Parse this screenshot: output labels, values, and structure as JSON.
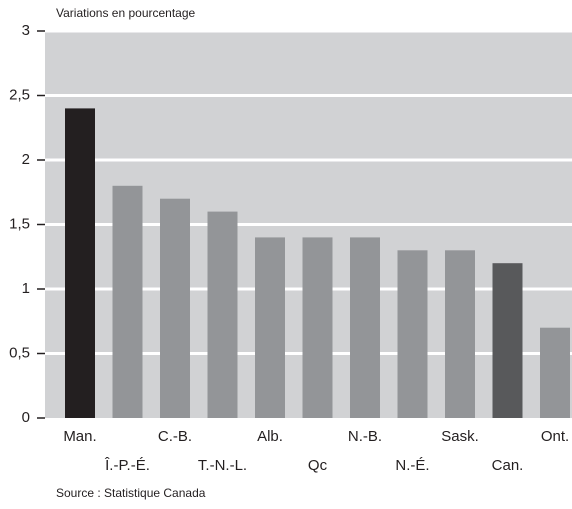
{
  "chart_data": {
    "type": "bar",
    "title": "Variations en pourcentage",
    "source": "Source : Statistique Canada",
    "categories": [
      "Man.",
      "Î.-P.-É.",
      "C.-B.",
      "T.-N.-L.",
      "Alb.",
      "Qc",
      "N.-B.",
      "N.-É.",
      "Sask.",
      "Can.",
      "Ont."
    ],
    "values": [
      2.4,
      1.8,
      1.7,
      1.6,
      1.4,
      1.4,
      1.4,
      1.3,
      1.3,
      1.2,
      0.7
    ],
    "colors": [
      "#231f20",
      "#939598",
      "#939598",
      "#939598",
      "#939598",
      "#939598",
      "#939598",
      "#939598",
      "#939598",
      "#58595b",
      "#939598"
    ],
    "ylim": [
      0,
      3
    ],
    "yticks": [
      0,
      {
        "value": 0.5,
        "label": "0,5"
      },
      1,
      {
        "value": 1.5,
        "label": "1,5"
      },
      2,
      {
        "value": 2.5,
        "label": "2,5"
      },
      3
    ],
    "grid": true
  }
}
